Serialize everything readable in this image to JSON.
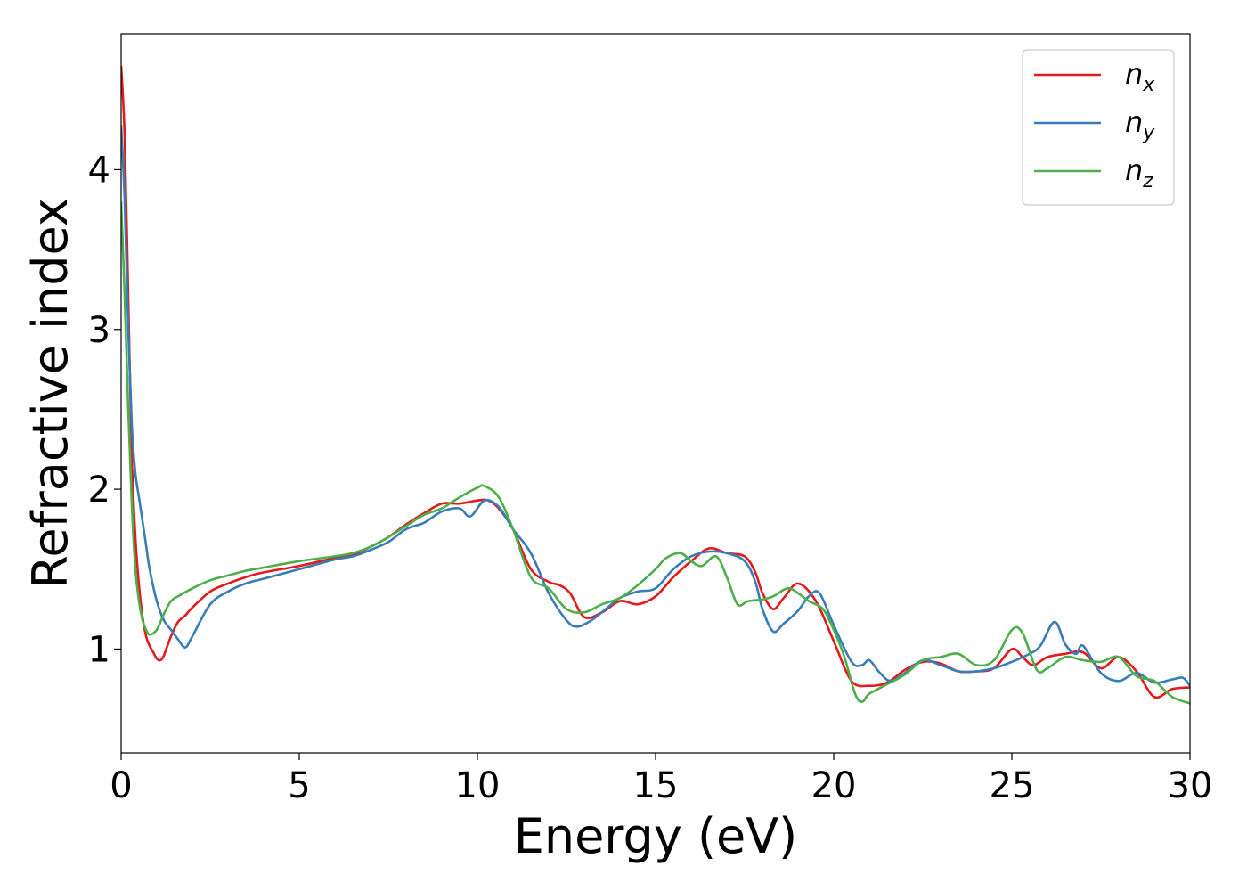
{
  "chart_data": {
    "type": "line",
    "title": "",
    "xlabel": "Energy (eV)",
    "ylabel": "Refractive index",
    "xlim": [
      0,
      30
    ],
    "ylim": [
      0.35,
      4.85
    ],
    "xticks": [
      0,
      5,
      10,
      15,
      20,
      25,
      30
    ],
    "yticks": [
      1,
      2,
      3,
      4
    ],
    "grid": false,
    "legend": "top-right",
    "series": [
      {
        "name": "n",
        "subscript": "x",
        "color": "#e41a1c",
        "x": [
          0,
          0.1,
          0.2,
          0.3,
          0.4,
          0.5,
          0.6,
          0.7,
          0.8,
          0.9,
          1.0,
          1.1,
          1.2,
          1.4,
          1.6,
          1.8,
          2.0,
          2.5,
          3.0,
          3.5,
          4,
          5,
          6,
          6.5,
          7,
          7.5,
          8,
          8.5,
          9,
          9.5,
          10,
          10.3,
          10.6,
          11,
          11.5,
          12,
          12.3,
          12.6,
          13,
          13.5,
          14,
          14.5,
          15,
          15.5,
          16,
          16.5,
          17,
          17.5,
          17.8,
          18,
          18.3,
          18.6,
          19,
          19.5,
          20,
          20.5,
          21,
          21.5,
          22,
          22.5,
          23,
          23.5,
          24,
          24.5,
          25,
          25.3,
          25.6,
          26,
          26.5,
          27,
          27.5,
          28,
          28.5,
          29,
          29.5,
          30
        ],
        "y": [
          4.65,
          4.2,
          3.2,
          2.2,
          1.7,
          1.4,
          1.2,
          1.08,
          1.02,
          0.98,
          0.94,
          0.93,
          0.96,
          1.08,
          1.17,
          1.21,
          1.26,
          1.36,
          1.41,
          1.45,
          1.48,
          1.52,
          1.57,
          1.59,
          1.64,
          1.7,
          1.78,
          1.85,
          1.91,
          1.91,
          1.93,
          1.93,
          1.88,
          1.75,
          1.5,
          1.42,
          1.4,
          1.35,
          1.2,
          1.23,
          1.3,
          1.28,
          1.33,
          1.45,
          1.55,
          1.63,
          1.6,
          1.58,
          1.48,
          1.35,
          1.25,
          1.32,
          1.41,
          1.3,
          1.05,
          0.8,
          0.77,
          0.79,
          0.87,
          0.92,
          0.91,
          0.86,
          0.86,
          0.88,
          1.0,
          0.95,
          0.9,
          0.95,
          0.97,
          0.98,
          0.88,
          0.95,
          0.86,
          0.7,
          0.75,
          0.76
        ]
      },
      {
        "name": "n",
        "subscript": "y",
        "color": "#377eb8",
        "x": [
          0,
          0.1,
          0.2,
          0.3,
          0.4,
          0.5,
          0.6,
          0.7,
          0.8,
          1.0,
          1.2,
          1.4,
          1.6,
          1.8,
          2.0,
          2.5,
          3.0,
          3.5,
          4,
          5,
          6,
          6.5,
          7,
          7.5,
          8,
          8.5,
          9,
          9.5,
          9.8,
          10.2,
          10.6,
          11,
          11.5,
          12,
          12.5,
          12.8,
          13.2,
          13.6,
          14,
          14.5,
          15,
          15.5,
          16,
          16.5,
          17,
          17.5,
          17.8,
          18,
          18.3,
          18.6,
          19,
          19.3,
          19.6,
          20,
          20.5,
          20.8,
          21,
          21.3,
          21.6,
          22,
          22.5,
          23,
          23.5,
          24,
          24.5,
          25,
          25.5,
          25.8,
          26.2,
          26.5,
          26.8,
          27,
          27.5,
          28,
          28.5,
          29,
          29.5,
          29.8,
          30
        ],
        "y": [
          4.28,
          3.8,
          3.0,
          2.4,
          2.1,
          1.95,
          1.8,
          1.65,
          1.5,
          1.3,
          1.18,
          1.12,
          1.06,
          1.01,
          1.08,
          1.28,
          1.36,
          1.41,
          1.44,
          1.5,
          1.56,
          1.58,
          1.62,
          1.67,
          1.75,
          1.79,
          1.86,
          1.88,
          1.83,
          1.93,
          1.89,
          1.75,
          1.6,
          1.35,
          1.18,
          1.14,
          1.18,
          1.25,
          1.32,
          1.36,
          1.38,
          1.5,
          1.58,
          1.61,
          1.6,
          1.55,
          1.42,
          1.25,
          1.11,
          1.16,
          1.24,
          1.33,
          1.35,
          1.15,
          0.92,
          0.9,
          0.93,
          0.85,
          0.8,
          0.85,
          0.93,
          0.9,
          0.86,
          0.86,
          0.88,
          0.92,
          0.97,
          1.02,
          1.17,
          1.03,
          0.97,
          1.02,
          0.85,
          0.8,
          0.85,
          0.79,
          0.81,
          0.82,
          0.77
        ]
      },
      {
        "name": "n",
        "subscript": "z",
        "color": "#4daf4a",
        "x": [
          0,
          0.1,
          0.2,
          0.3,
          0.4,
          0.5,
          0.6,
          0.7,
          0.8,
          1.0,
          1.2,
          1.4,
          1.6,
          2.0,
          2.5,
          3.0,
          3.5,
          4,
          5,
          6,
          6.5,
          7,
          7.5,
          8,
          8.5,
          9,
          9.5,
          10,
          10.2,
          10.6,
          11,
          11.5,
          12,
          12.5,
          13,
          13.5,
          14,
          14.5,
          15,
          15.3,
          15.7,
          16,
          16.3,
          16.7,
          17,
          17.3,
          17.6,
          18,
          18.3,
          18.7,
          19,
          19.3,
          19.7,
          20,
          20.3,
          20.6,
          20.8,
          21,
          21.5,
          22,
          22.5,
          23,
          23.5,
          24,
          24.5,
          25,
          25.3,
          25.7,
          26,
          26.5,
          27,
          27.5,
          28,
          28.5,
          29,
          29.5,
          30
        ],
        "y": [
          3.8,
          3.2,
          2.5,
          1.9,
          1.5,
          1.3,
          1.18,
          1.12,
          1.09,
          1.12,
          1.22,
          1.3,
          1.33,
          1.38,
          1.43,
          1.46,
          1.49,
          1.51,
          1.55,
          1.58,
          1.6,
          1.64,
          1.7,
          1.77,
          1.84,
          1.88,
          1.95,
          2.01,
          2.02,
          1.95,
          1.75,
          1.45,
          1.38,
          1.25,
          1.23,
          1.28,
          1.32,
          1.4,
          1.5,
          1.57,
          1.6,
          1.55,
          1.52,
          1.58,
          1.45,
          1.28,
          1.3,
          1.31,
          1.33,
          1.38,
          1.35,
          1.3,
          1.25,
          1.12,
          0.95,
          0.72,
          0.67,
          0.72,
          0.78,
          0.84,
          0.93,
          0.95,
          0.97,
          0.9,
          0.93,
          1.12,
          1.1,
          0.87,
          0.88,
          0.95,
          0.93,
          0.92,
          0.95,
          0.83,
          0.8,
          0.7,
          0.66
        ]
      }
    ]
  }
}
